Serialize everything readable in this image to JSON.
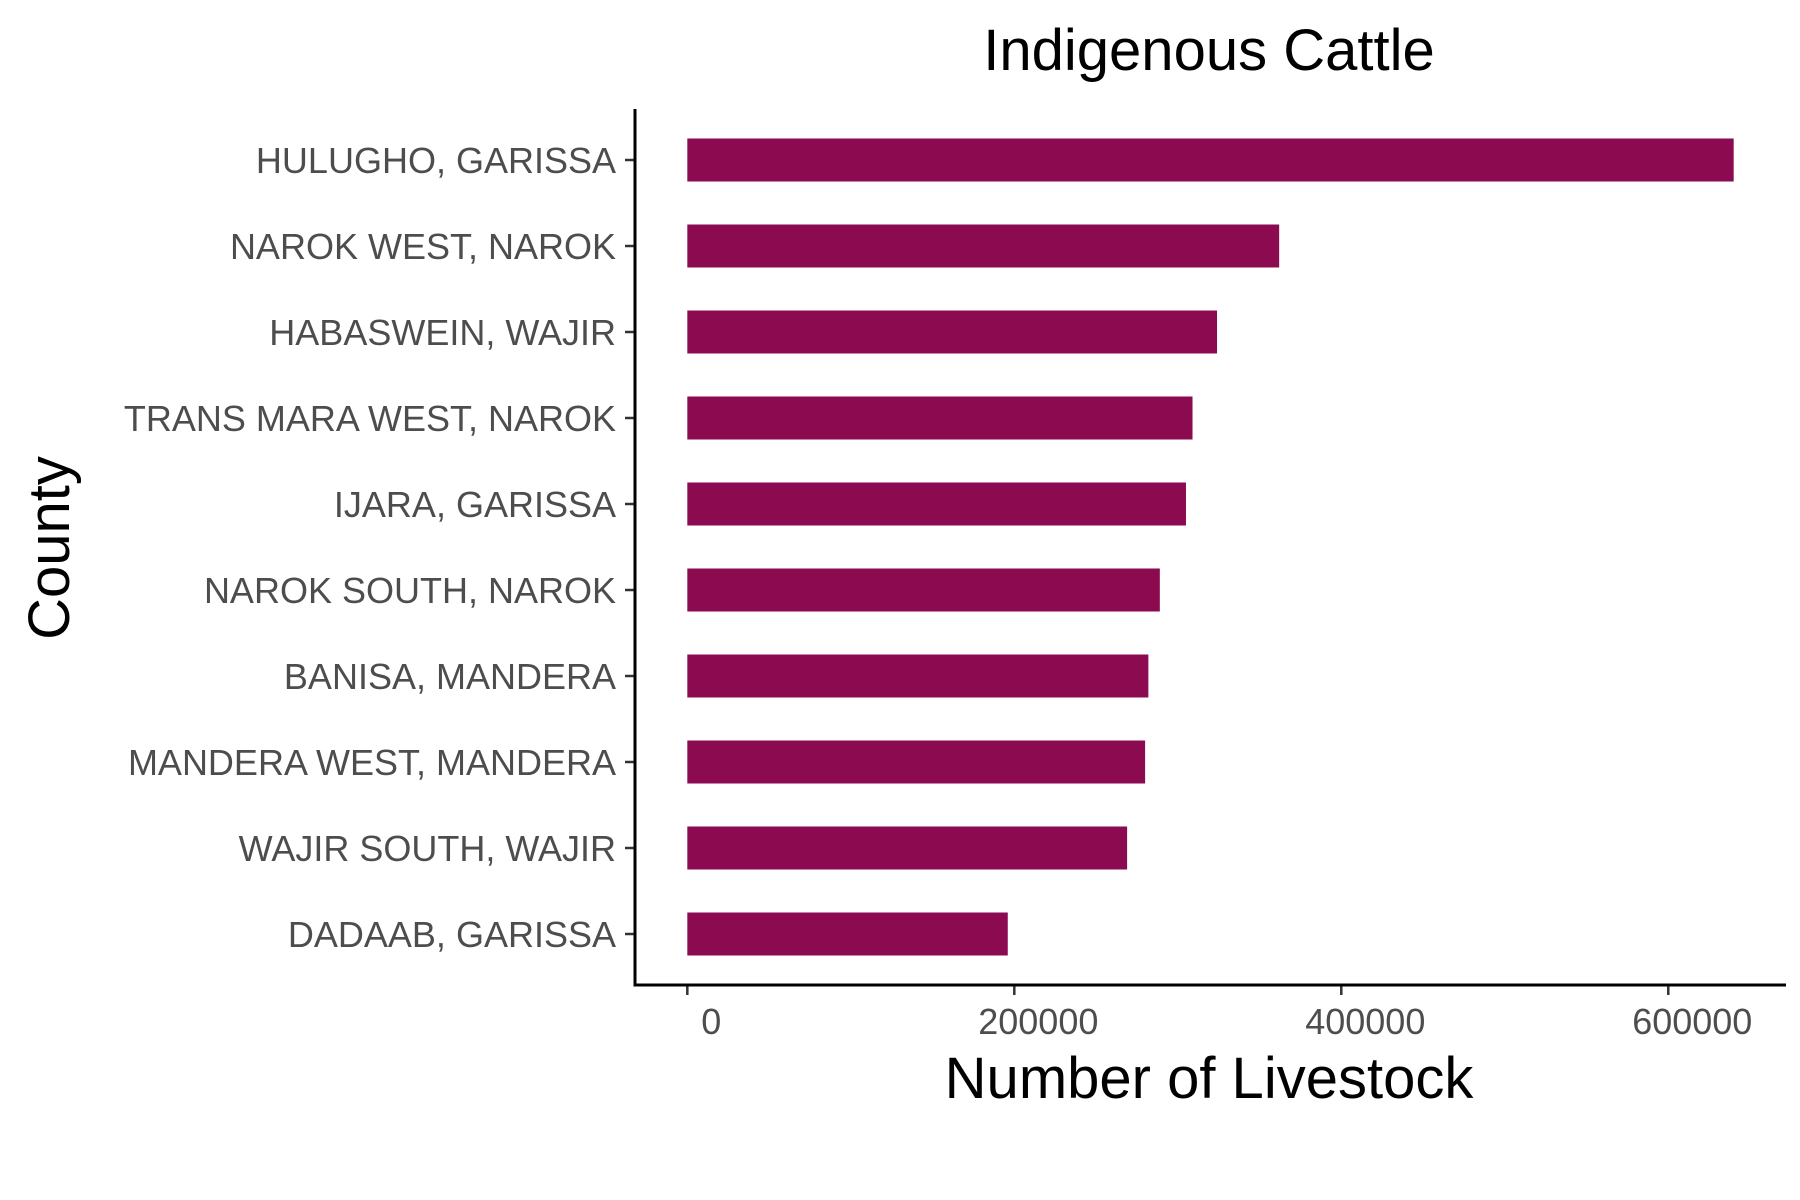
{
  "chart_data": {
    "type": "bar",
    "orientation": "horizontal",
    "title": "Indigenous Cattle",
    "xlabel": "Number of Livestock",
    "ylabel": "County",
    "xlim": [
      -32000,
      672000
    ],
    "xticks": [
      0,
      200000,
      400000,
      600000
    ],
    "xtick_labels": [
      "0",
      "200000",
      "400000",
      "600000"
    ],
    "categories": [
      "HULUGHO, GARISSA",
      "NAROK WEST, NAROK",
      "HABASWEIN, WAJIR",
      "TRANS MARA WEST, NAROK",
      "IJARA, GARISSA",
      "NAROK SOUTH, NAROK",
      "BANISA, MANDERA",
      "MANDERA WEST, MANDERA",
      "WAJIR SOUTH, WAJIR",
      "DADAAB, GARISSA"
    ],
    "values": [
      640000,
      362000,
      324000,
      309000,
      305000,
      289000,
      282000,
      280000,
      269000,
      196000
    ],
    "bar_color": "#8b0a50",
    "grid": false,
    "legend": "none"
  }
}
